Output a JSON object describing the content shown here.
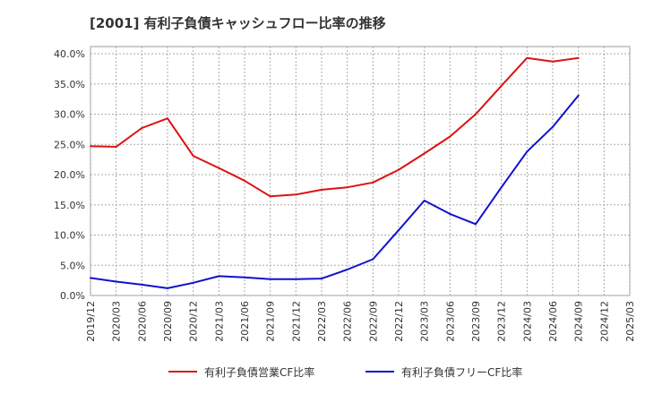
{
  "chart_data": {
    "type": "line",
    "title": "[2001]  有利子負債キャッシュフロー比率の推移",
    "xlabel": "",
    "ylabel": "",
    "x": [
      "2019/12",
      "2020/03",
      "2020/06",
      "2020/09",
      "2020/12",
      "2021/03",
      "2021/06",
      "2021/09",
      "2021/12",
      "2022/03",
      "2022/06",
      "2022/09",
      "2022/12",
      "2023/03",
      "2023/06",
      "2023/09",
      "2023/12",
      "2024/03",
      "2024/06",
      "2024/09",
      "2024/12",
      "2025/03"
    ],
    "ylim": [
      0,
      40
    ],
    "yticks": [
      0,
      5,
      10,
      15,
      20,
      25,
      30,
      35,
      40
    ],
    "ytick_labels": [
      "0.0%",
      "5.0%",
      "10.0%",
      "15.0%",
      "20.0%",
      "25.0%",
      "30.0%",
      "35.0%",
      "40.0%"
    ],
    "grid": true,
    "legend_position": "bottom",
    "series": [
      {
        "name": "有利子負債営業CF比率",
        "color": "#dd1111",
        "values": [
          24.7,
          24.6,
          27.7,
          29.3,
          23.1,
          21.1,
          19.0,
          16.4,
          16.7,
          17.5,
          17.9,
          18.7,
          20.8,
          23.5,
          26.3,
          30.0,
          34.7,
          39.3,
          38.7,
          39.3,
          null,
          null
        ]
      },
      {
        "name": "有利子負債フリーCF比率",
        "color": "#1111cc",
        "values": [
          2.9,
          2.3,
          1.8,
          1.2,
          2.1,
          3.2,
          3.0,
          2.7,
          2.7,
          2.8,
          4.3,
          6.0,
          10.8,
          15.7,
          13.5,
          11.8,
          17.9,
          23.8,
          27.9,
          33.1,
          null,
          null
        ]
      }
    ]
  }
}
